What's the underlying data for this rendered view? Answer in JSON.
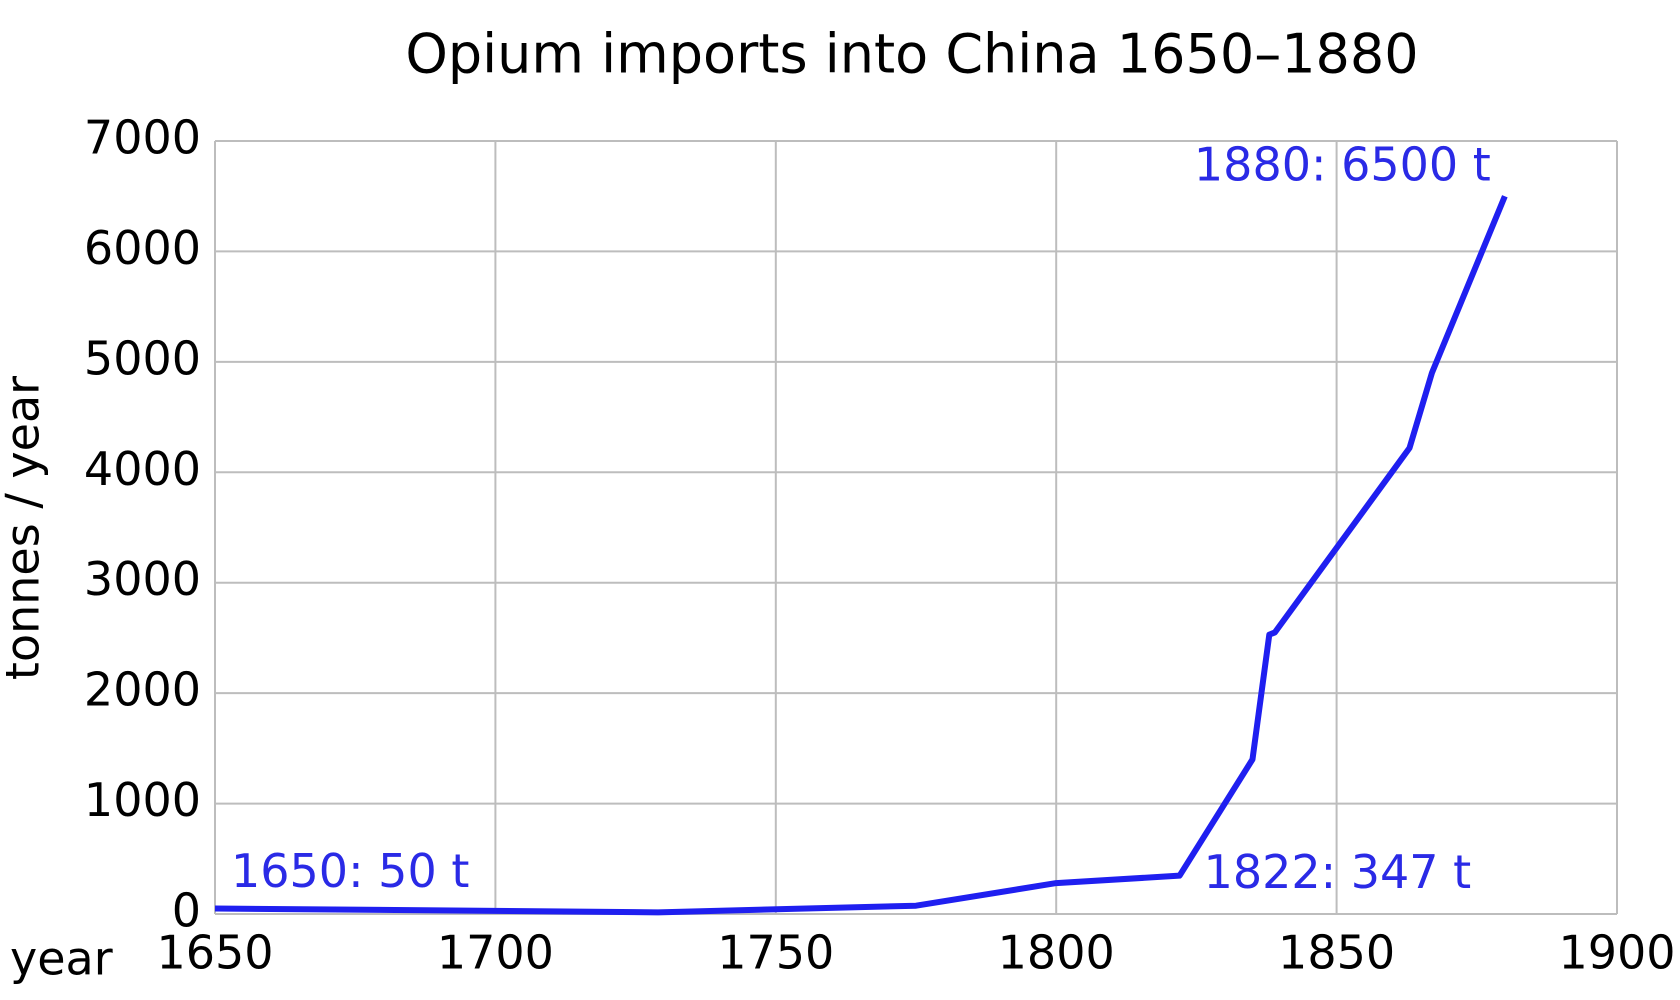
{
  "chart_data": {
    "type": "line",
    "title": "Opium imports into China 1650–1880",
    "x_label": "year",
    "y_label": "tonnes / year",
    "x": [
      1650,
      1729,
      1775,
      1800,
      1822,
      1835,
      1838,
      1839,
      1863,
      1867,
      1880
    ],
    "series": [
      {
        "name": "Opium imports",
        "color": "#1f1ff0",
        "values": [
          50,
          15,
          75,
          280,
          347,
          1400,
          2530,
          2550,
          4220,
          4900,
          6500
        ],
        "value_labels": [
          "1650: 50 t",
          null,
          null,
          null,
          "1822: 347 t",
          null,
          null,
          null,
          null,
          null,
          "1880: 6500 t"
        ]
      }
    ],
    "xlim": [
      1650,
      1900
    ],
    "xticks": [
      1650,
      1700,
      1750,
      1800,
      1850,
      1900
    ],
    "ylim": [
      0,
      7000
    ],
    "yticks": [
      0,
      1000,
      2000,
      3000,
      4000,
      5000,
      6000,
      7000
    ],
    "grid": true
  }
}
